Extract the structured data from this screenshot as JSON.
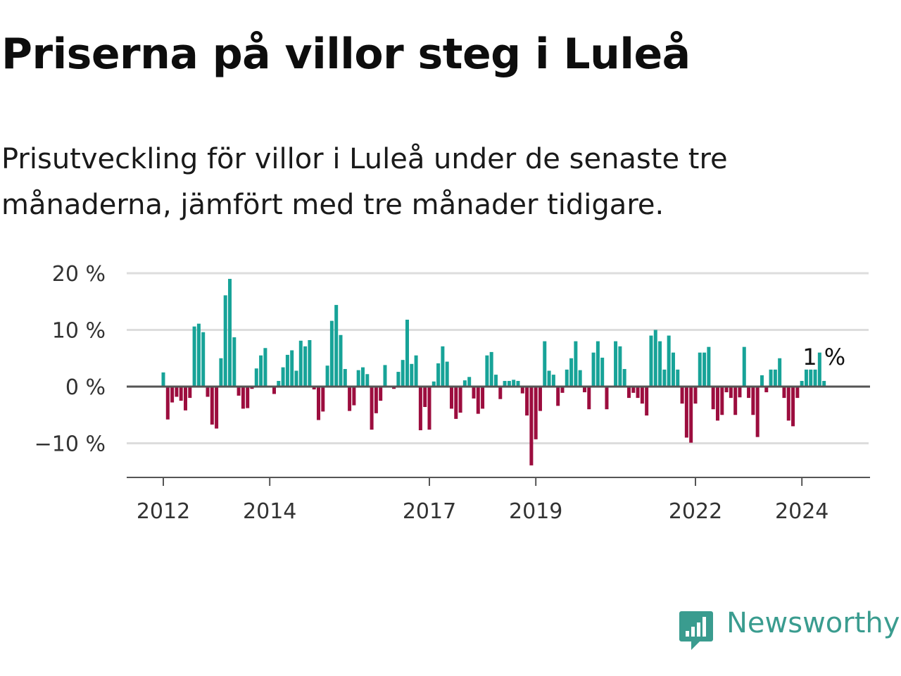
{
  "header": {
    "title": "Priserna på villor steg i Luleå",
    "subtitle": "Prisutveckling för villor i Luleå under de senaste tre månaderna, jämfört med tre månader tidigare."
  },
  "brand": {
    "name": "Newsworthy",
    "icon": "newsworthy-logo-icon",
    "color": "#3a9c8f"
  },
  "colors": {
    "positive": "#17a398",
    "negative": "#9c0d3e",
    "grid": "#dddddd",
    "axis": "#555555"
  },
  "chart_data": {
    "type": "bar",
    "title": "Priserna på villor steg i Luleå",
    "xlabel": "",
    "ylabel": "",
    "ylim": [
      -16,
      20
    ],
    "y_ticks": [
      20,
      10,
      0,
      -10
    ],
    "y_tick_labels": [
      "20 %",
      "10 %",
      "0 %",
      "−10 %"
    ],
    "x_start": 2012.0,
    "x_step": 0.08333,
    "x_ticks": [
      2012,
      2014,
      2017,
      2019,
      2022,
      2024
    ],
    "x_tick_labels": [
      "2012",
      "2014",
      "2017",
      "2019",
      "2022",
      "2024"
    ],
    "values": [
      2.5,
      -5.8,
      -2.8,
      -1.8,
      -2.5,
      -4.2,
      -2.0,
      10.6,
      11.1,
      9.6,
      -1.8,
      -6.7,
      -7.4,
      5.0,
      16.1,
      19.0,
      8.7,
      -1.6,
      -3.9,
      -3.8,
      -0.4,
      3.2,
      5.5,
      6.8,
      0.0,
      -1.3,
      1.0,
      3.4,
      5.6,
      6.4,
      2.8,
      8.1,
      7.1,
      8.2,
      -0.5,
      -5.9,
      -4.4,
      3.7,
      11.6,
      14.4,
      9.1,
      3.1,
      -4.3,
      -3.3,
      2.9,
      3.4,
      2.2,
      -7.6,
      -4.7,
      -2.5,
      3.8,
      0.0,
      -0.4,
      2.6,
      4.7,
      11.8,
      4.0,
      5.5,
      -7.7,
      -3.6,
      -7.6,
      0.9,
      4.1,
      7.1,
      4.4,
      -3.9,
      -5.7,
      -4.6,
      1.1,
      1.7,
      -2.1,
      -4.8,
      -3.9,
      5.5,
      6.1,
      2.1,
      -2.2,
      1.0,
      1.0,
      1.2,
      1.0,
      -1.2,
      -5.1,
      -13.9,
      -9.3,
      -4.3,
      8.0,
      2.8,
      2.1,
      -3.4,
      -1.1,
      3.0,
      5.0,
      8.0,
      2.9,
      -1.0,
      -4.0,
      6.0,
      8.0,
      5.1,
      -4.0,
      0.0,
      8.0,
      7.1,
      3.1,
      -2.0,
      -1.1,
      -2.0,
      -3.0,
      -5.1,
      9.0,
      10.0,
      8.0,
      3.0,
      9.0,
      6.0,
      3.0,
      -3.0,
      -9.0,
      -9.9,
      -3.0,
      6.0,
      6.0,
      7.0,
      -4.0,
      -6.0,
      -5.0,
      -1.0,
      -2.0,
      -5.0,
      -1.9,
      7.0,
      -2.0,
      -5.0,
      -8.9,
      2.0,
      -1.0,
      3.0,
      3.0,
      5.0,
      -2.0,
      -6.0,
      -7.0,
      -2.0,
      1.0,
      3.0,
      3.0,
      3.0,
      6.0,
      1.0
    ],
    "last_value_label": "1 %"
  }
}
